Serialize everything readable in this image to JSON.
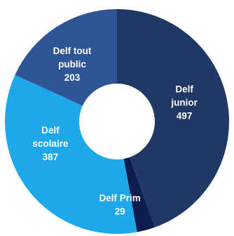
{
  "chart_data": {
    "type": "pie",
    "donut": true,
    "categories": [
      "Delf junior",
      "Delf Prim",
      "Delf scolaire",
      "Delf tout public"
    ],
    "values": [
      497,
      29,
      387,
      203
    ],
    "labels": [
      [
        "Delf",
        "junior",
        "497"
      ],
      [
        "Delf Prim",
        "29"
      ],
      [
        "Delf",
        "scolaire",
        "387"
      ],
      [
        "Delf tout",
        "public",
        "203"
      ]
    ],
    "colors": [
      "#1f3864",
      "#0d1d4f",
      "#1ea8ec",
      "#2f5597"
    ],
    "legend": "none",
    "start_angle_deg": 0,
    "direction": "clockwise"
  }
}
